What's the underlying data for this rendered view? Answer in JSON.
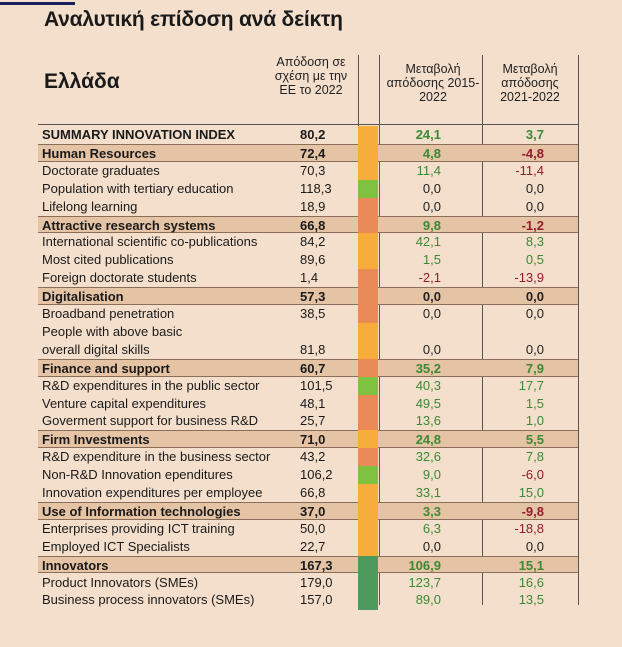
{
  "title": "Αναλυτική επίδοση ανά δείκτη",
  "country": "Ελλάδα",
  "headers": {
    "performance": "Απόδοση σε σχέση με την ΕΕ το 2022",
    "change_2015_2022": "Μεταβολή απόδοσης 2015-2022",
    "change_2021_2022": "Μεταβολή απόδοσης 2021-2022"
  },
  "colors": {
    "orange": "#f6ad3c",
    "green": "#7fc241",
    "salmon": "#ea8a58",
    "darkgreen": "#4e9a5c",
    "positive": "#3b8a34",
    "negative": "#951b2e"
  },
  "rows": [
    {
      "label": "SUMMARY INNOVATION INDEX",
      "value": "80,2",
      "bar": "orange",
      "c1": "24,1",
      "c2": "3,7",
      "bold": true
    },
    {
      "label": "Human Resources",
      "value": "72,4",
      "bar": "orange",
      "c1": "4,8",
      "c2": "-4,8",
      "category": true
    },
    {
      "label": "Doctorate graduates",
      "value": "70,3",
      "bar": "orange",
      "c1": "11,4",
      "c2": "-11,4"
    },
    {
      "label": "Population with tertiary education",
      "value": "118,3",
      "bar": "green",
      "c1": "0,0",
      "c2": "0,0"
    },
    {
      "label": "Lifelong learning",
      "value": "18,9",
      "bar": "salmon",
      "c1": "0,0",
      "c2": "0,0"
    },
    {
      "label": "Attractive research systems",
      "value": "66,8",
      "bar": "salmon",
      "c1": "9,8",
      "c2": "-1,2",
      "category": true
    },
    {
      "label": "International scientific co-publications",
      "value": "84,2",
      "bar": "orange",
      "c1": "42,1",
      "c2": "8,3"
    },
    {
      "label": "Most cited publications",
      "value": "89,6",
      "bar": "orange",
      "c1": "1,5",
      "c2": "0,5"
    },
    {
      "label": "Foreign doctorate students",
      "value": "1,4",
      "bar": "salmon",
      "c1": "-2,1",
      "c2": "-13,9"
    },
    {
      "label": "Digitalisation",
      "value": "57,3",
      "bar": "salmon",
      "c1": "0,0",
      "c2": "0,0",
      "category": true
    },
    {
      "label": "Broadband penetration",
      "value": "38,5",
      "bar": "salmon",
      "c1": "0,0",
      "c2": "0,0"
    },
    {
      "label": "People with above basic",
      "label2": "overall digital skills",
      "value": "81,8",
      "bar": "orange",
      "c1": "0,0",
      "c2": "0,0"
    },
    {
      "label": "Finance and support",
      "value": "60,7",
      "bar": "salmon",
      "c1": "35,2",
      "c2": "7,9",
      "category": true
    },
    {
      "label": "R&D expenditures in the public sector",
      "value": "101,5",
      "bar": "green",
      "c1": "40,3",
      "c2": "17,7"
    },
    {
      "label": "Venture capital expenditures",
      "value": "48,1",
      "bar": "salmon",
      "c1": "49,5",
      "c2": "1,5"
    },
    {
      "label": "Goverment support for business R&D",
      "value": "25,7",
      "bar": "salmon",
      "c1": "13,6",
      "c2": "1,0"
    },
    {
      "label": "Firm Investments",
      "value": "71,0",
      "bar": "orange",
      "c1": "24,8",
      "c2": "5,5",
      "category": true
    },
    {
      "label": "R&D expenditure in the business sector",
      "value": "43,2",
      "bar": "salmon",
      "c1": "32,6",
      "c2": "7,8"
    },
    {
      "label": "Non-R&D Innovation ependitures",
      "value": "106,2",
      "bar": "green",
      "c1": "9,0",
      "c2": "-6,0"
    },
    {
      "label": "Innovation expenditures per employee",
      "value": "66,8",
      "bar": "orange",
      "c1": "33,1",
      "c2": "15,0"
    },
    {
      "label": "Use of Information technologies",
      "value": "37,0",
      "bar": "orange",
      "c1": "3,3",
      "c2": "-9,8",
      "category": true
    },
    {
      "label": "Enterprises providing ICT training",
      "value": "50,0",
      "bar": "orange",
      "c1": "6,3",
      "c2": "-18,8"
    },
    {
      "label": "Employed ICT Specialists",
      "value": "22,7",
      "bar": "orange",
      "c1": "0,0",
      "c2": "0,0"
    },
    {
      "label": "Innovators",
      "value": "167,3",
      "bar": "darkgreen",
      "c1": "106,9",
      "c2": "15,1",
      "category": true
    },
    {
      "label": "Product Innovators (SMEs)",
      "value": "179,0",
      "bar": "darkgreen",
      "c1": "123,7",
      "c2": "16,6"
    },
    {
      "label": "Business process innovators (SMEs)",
      "value": "157,0",
      "bar": "darkgreen",
      "c1": "89,0",
      "c2": "13,5"
    }
  ]
}
